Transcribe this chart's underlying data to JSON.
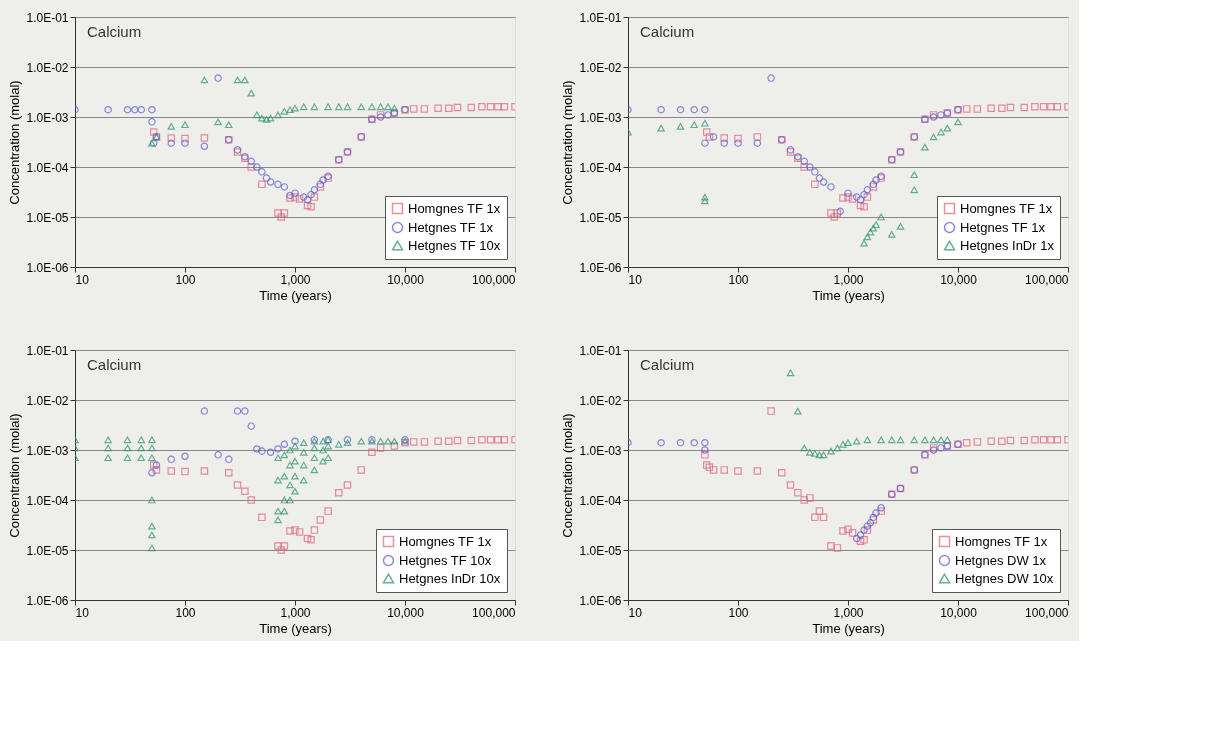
{
  "chart_data": [
    {
      "type": "scatter",
      "title": "Calcium",
      "xlabel": "Time (years)",
      "ylabel": "Concentration (molal)",
      "log": "xy",
      "grid": "y",
      "legend": "bottom right",
      "xlim": [
        10,
        100000
      ],
      "ylim": [
        1e-06,
        0.1
      ],
      "xticks": [
        10,
        100,
        {
          "value": 1000,
          "label": "1,000"
        },
        {
          "value": 10000,
          "label": "10,000"
        },
        {
          "value": 100000,
          "label": "100,000"
        }
      ],
      "yticks": [
        {
          "value": 1e-06,
          "label": "1.0E-06"
        },
        {
          "value": 1e-05,
          "label": "1.0E-05"
        },
        {
          "value": 0.0001,
          "label": "1.0E-04"
        },
        {
          "value": 0.001,
          "label": "1.0E-03"
        },
        {
          "value": 0.01,
          "label": "1.0E-02"
        },
        {
          "value": 0.1,
          "label": "1.0E-01"
        }
      ],
      "series": [
        {
          "name": "Homgnes TF 1x",
          "color": "#e0607a",
          "marker": "square",
          "x": [
            52,
            55,
            75,
            100,
            150,
            250,
            300,
            350,
            400,
            500,
            700,
            750,
            800,
            900,
            1000,
            1100,
            1300,
            1400,
            1500,
            1700,
            2000,
            2500,
            3000,
            4000,
            5000,
            6000,
            8000,
            10000,
            12000,
            15000,
            20000,
            25000,
            30000,
            40000,
            50000,
            60000,
            70000,
            80000,
            100000
          ],
          "values": [
            0.0005,
            0.0004,
            0.00038,
            0.00037,
            0.00038,
            0.00035,
            0.0002,
            0.00015,
            0.0001,
            4.5e-05,
            1.2e-05,
            1e-05,
            1.2e-05,
            2.4e-05,
            2.5e-05,
            2.3e-05,
            1.7e-05,
            1.6e-05,
            2.5e-05,
            4e-05,
            6e-05,
            0.00014,
            0.0002,
            0.0004,
            0.0009,
            0.0011,
            0.0012,
            0.0014,
            0.00145,
            0.00145,
            0.0015,
            0.0015,
            0.00155,
            0.00155,
            0.0016,
            0.0016,
            0.0016,
            0.0016,
            0.0016
          ]
        },
        {
          "name": "Hetgnes TF 1x",
          "color": "#5a5ad0",
          "marker": "circle",
          "x": [
            10,
            20,
            30,
            35,
            40,
            50,
            50,
            52,
            55,
            75,
            100,
            150,
            200,
            250,
            300,
            350,
            400,
            450,
            500,
            550,
            600,
            700,
            800,
            900,
            1000,
            1200,
            1300,
            1400,
            1500,
            1700,
            1800,
            2000,
            2500,
            3000,
            4000,
            5000,
            6000,
            7000,
            8000,
            10000
          ],
          "values": [
            0.0014,
            0.0014,
            0.0014,
            0.0014,
            0.0014,
            0.0014,
            0.0008,
            0.0003,
            0.0004,
            0.0003,
            0.0003,
            0.00026,
            0.006,
            0.00035,
            0.00022,
            0.00016,
            0.00013,
            0.0001,
            8e-05,
            6e-05,
            5e-05,
            4.5e-05,
            4e-05,
            2.7e-05,
            3e-05,
            2.5e-05,
            2.2e-05,
            2.8e-05,
            3.5e-05,
            4.5e-05,
            5.5e-05,
            6.5e-05,
            0.00014,
            0.0002,
            0.0004,
            0.0009,
            0.001,
            0.0011,
            0.0012,
            0.0014
          ]
        },
        {
          "name": "Hetgnes TF 10x",
          "color": "#2a9070",
          "marker": "triangle",
          "x": [
            50,
            55,
            75,
            100,
            150,
            200,
            250,
            300,
            350,
            400,
            450,
            500,
            550,
            600,
            700,
            800,
            900,
            1000,
            1200,
            1500,
            2000,
            2500,
            3000,
            4000,
            5000,
            6000,
            7000,
            8000
          ],
          "values": [
            0.0003,
            0.0004,
            0.00065,
            0.0007,
            0.0055,
            0.0008,
            0.0007,
            0.0055,
            0.0055,
            0.003,
            0.0011,
            0.00095,
            0.0009,
            0.00095,
            0.0011,
            0.0013,
            0.0014,
            0.0015,
            0.0016,
            0.0016,
            0.0016,
            0.0016,
            0.0016,
            0.0016,
            0.0016,
            0.0016,
            0.0016,
            0.0015
          ]
        }
      ]
    },
    {
      "type": "scatter",
      "title": "Calcium",
      "xlabel": "Time (years)",
      "ylabel": "Concentration (molal)",
      "log": "xy",
      "grid": "y",
      "legend": "bottom right",
      "xlim": [
        10,
        100000
      ],
      "ylim": [
        1e-06,
        0.1
      ],
      "xticks": [
        10,
        100,
        {
          "value": 1000,
          "label": "1,000"
        },
        {
          "value": 10000,
          "label": "10,000"
        },
        {
          "value": 100000,
          "label": "100,000"
        }
      ],
      "yticks": [
        {
          "value": 1e-06,
          "label": "1.0E-06"
        },
        {
          "value": 1e-05,
          "label": "1.0E-05"
        },
        {
          "value": 0.0001,
          "label": "1.0E-04"
        },
        {
          "value": 0.001,
          "label": "1.0E-03"
        },
        {
          "value": 0.01,
          "label": "1.0E-02"
        },
        {
          "value": 0.1,
          "label": "1.0E-01"
        }
      ],
      "series": [
        {
          "name": "Homgnes TF 1x",
          "color": "#e0607a",
          "marker": "square",
          "x": [
            52,
            55,
            75,
            100,
            150,
            250,
            300,
            350,
            400,
            500,
            700,
            750,
            800,
            900,
            1000,
            1100,
            1300,
            1400,
            1500,
            1700,
            2000,
            2500,
            3000,
            4000,
            5000,
            6000,
            8000,
            10000,
            12000,
            15000,
            20000,
            25000,
            30000,
            40000,
            50000,
            60000,
            70000,
            80000,
            100000
          ],
          "values": [
            0.0005,
            0.0004,
            0.00038,
            0.00037,
            0.0004,
            0.00035,
            0.0002,
            0.00015,
            0.0001,
            4.5e-05,
            1.2e-05,
            1e-05,
            1.2e-05,
            2.4e-05,
            2.5e-05,
            2.3e-05,
            1.7e-05,
            1.6e-05,
            2.5e-05,
            4e-05,
            6e-05,
            0.00014,
            0.0002,
            0.0004,
            0.0009,
            0.0011,
            0.0012,
            0.0014,
            0.00145,
            0.00145,
            0.0015,
            0.0015,
            0.00155,
            0.00155,
            0.0016,
            0.0016,
            0.0016,
            0.0016,
            0.0016
          ]
        },
        {
          "name": "Hetgnes TF 1x",
          "color": "#5a5ad0",
          "marker": "circle",
          "x": [
            10,
            20,
            30,
            40,
            50,
            50,
            60,
            75,
            100,
            150,
            200,
            250,
            300,
            350,
            400,
            450,
            500,
            550,
            600,
            700,
            850,
            1000,
            1200,
            1300,
            1400,
            1500,
            1700,
            1800,
            2000,
            2500,
            3000,
            4000,
            5000,
            6000,
            7000,
            8000,
            10000
          ],
          "values": [
            0.0014,
            0.0014,
            0.0014,
            0.0014,
            0.0014,
            0.0003,
            0.0004,
            0.0003,
            0.0003,
            0.0003,
            0.006,
            0.00035,
            0.00022,
            0.00016,
            0.00013,
            0.0001,
            8e-05,
            6e-05,
            5e-05,
            4e-05,
            1.3e-05,
            3e-05,
            2.5e-05,
            2.2e-05,
            2.8e-05,
            3.5e-05,
            4.5e-05,
            5.5e-05,
            6.5e-05,
            0.00014,
            0.0002,
            0.0004,
            0.0009,
            0.001,
            0.0011,
            0.0012,
            0.0014
          ]
        },
        {
          "name": "Hetgnes InDr 1x",
          "color": "#2a9070",
          "marker": "triangle",
          "x": [
            10,
            20,
            30,
            40,
            50,
            50,
            50,
            1400,
            1500,
            1600,
            1700,
            1800,
            2000,
            2500,
            3000,
            4000,
            4000,
            5000,
            6000,
            7000,
            8000,
            10000
          ],
          "values": [
            0.0005,
            0.0006,
            0.00065,
            0.0007,
            0.00075,
            2.5e-05,
            2.1e-05,
            3e-06,
            4e-06,
            5e-06,
            6e-06,
            7e-06,
            1e-05,
            4.5e-06,
            6.5e-06,
            7e-05,
            3.5e-05,
            0.00025,
            0.0004,
            0.0005,
            0.0006,
            0.0008
          ]
        }
      ]
    },
    {
      "type": "scatter",
      "title": "Calcium",
      "xlabel": "Time (years)",
      "ylabel": "Concentration (molal)",
      "log": "xy",
      "grid": "y",
      "legend": "bottom right",
      "xlim": [
        10,
        100000
      ],
      "ylim": [
        1e-06,
        0.1
      ],
      "xticks": [
        10,
        100,
        {
          "value": 1000,
          "label": "1,000"
        },
        {
          "value": 10000,
          "label": "10,000"
        },
        {
          "value": 100000,
          "label": "100,000"
        }
      ],
      "yticks": [
        {
          "value": 1e-06,
          "label": "1.0E-06"
        },
        {
          "value": 1e-05,
          "label": "1.0E-05"
        },
        {
          "value": 0.0001,
          "label": "1.0E-04"
        },
        {
          "value": 0.001,
          "label": "1.0E-03"
        },
        {
          "value": 0.01,
          "label": "1.0E-02"
        },
        {
          "value": 0.1,
          "label": "1.0E-01"
        }
      ],
      "series": [
        {
          "name": "Homgnes TF 1x",
          "color": "#e0607a",
          "marker": "square",
          "x": [
            52,
            55,
            75,
            100,
            150,
            250,
            300,
            350,
            400,
            500,
            700,
            750,
            800,
            900,
            1000,
            1100,
            1300,
            1400,
            1500,
            1700,
            2000,
            2500,
            3000,
            4000,
            5000,
            6000,
            8000,
            10000,
            12000,
            15000,
            20000,
            25000,
            30000,
            40000,
            50000,
            60000,
            70000,
            80000,
            100000
          ],
          "values": [
            0.0005,
            0.0004,
            0.00038,
            0.00037,
            0.00038,
            0.00035,
            0.0002,
            0.00015,
            0.0001,
            4.5e-05,
            1.2e-05,
            1e-05,
            1.2e-05,
            2.4e-05,
            2.5e-05,
            2.3e-05,
            1.7e-05,
            1.6e-05,
            2.5e-05,
            4e-05,
            6e-05,
            0.00014,
            0.0002,
            0.0004,
            0.0009,
            0.0011,
            0.0012,
            0.0014,
            0.00145,
            0.00145,
            0.0015,
            0.0015,
            0.00155,
            0.00155,
            0.0016,
            0.0016,
            0.0016,
            0.0016,
            0.0016
          ]
        },
        {
          "name": "Hetgnes TF 10x",
          "color": "#5a5ad0",
          "marker": "circle",
          "x": [
            50,
            55,
            75,
            100,
            150,
            200,
            250,
            300,
            350,
            400,
            450,
            500,
            600,
            700,
            800,
            1000,
            1500,
            2000,
            3000,
            5000,
            10000
          ],
          "values": [
            0.00035,
            0.0005,
            0.00065,
            0.00075,
            0.006,
            0.0008,
            0.00065,
            0.006,
            0.006,
            0.003,
            0.00105,
            0.00095,
            0.0009,
            0.00105,
            0.0013,
            0.0015,
            0.0016,
            0.0016,
            0.0016,
            0.0016,
            0.0016
          ]
        },
        {
          "name": "Hetgnes InDr 10x",
          "color": "#2a9070",
          "marker": "triangle",
          "x": [
            10,
            10,
            10,
            20,
            20,
            20,
            30,
            30,
            30,
            40,
            40,
            40,
            50,
            50,
            50,
            50,
            50,
            50,
            50,
            700,
            700,
            700,
            700,
            800,
            800,
            800,
            800,
            900,
            900,
            900,
            900,
            1000,
            1000,
            1000,
            1000,
            1200,
            1200,
            1200,
            1200,
            1500,
            1500,
            1500,
            1500,
            1800,
            1800,
            1800,
            2000,
            2000,
            2000,
            2500,
            3000,
            4000,
            5000,
            6000,
            7000,
            8000,
            10000
          ],
          "values": [
            0.0007,
            0.0011,
            0.0016,
            0.0007,
            0.0011,
            0.0016,
            0.0007,
            0.0011,
            0.0016,
            0.0007,
            0.0011,
            0.0016,
            0.0007,
            0.0011,
            0.0016,
            0.0001,
            3e-05,
            2e-05,
            1.1e-05,
            4e-05,
            6e-05,
            0.00025,
            0.0007,
            6e-05,
            0.0001,
            0.0003,
            0.0008,
            0.0001,
            0.0002,
            0.0005,
            0.001,
            0.00015,
            0.0003,
            0.0006,
            0.0012,
            0.00025,
            0.0005,
            0.0009,
            0.0014,
            0.0004,
            0.0007,
            0.0011,
            0.0015,
            0.0006,
            0.001,
            0.0015,
            0.0007,
            0.0012,
            0.0016,
            0.0013,
            0.0014,
            0.0015,
            0.0015,
            0.0015,
            0.0015,
            0.0015,
            0.0015
          ]
        }
      ]
    },
    {
      "type": "scatter",
      "title": "Calcium",
      "xlabel": "Time (years)",
      "ylabel": "Concentration (molal)",
      "log": "xy",
      "grid": "y",
      "legend": "bottom right",
      "xlim": [
        10,
        100000
      ],
      "ylim": [
        1e-06,
        0.1
      ],
      "xticks": [
        10,
        100,
        {
          "value": 1000,
          "label": "1,000"
        },
        {
          "value": 10000,
          "label": "10,000"
        },
        {
          "value": 100000,
          "label": "100,000"
        }
      ],
      "yticks": [
        {
          "value": 1e-06,
          "label": "1.0E-06"
        },
        {
          "value": 1e-05,
          "label": "1.0E-05"
        },
        {
          "value": 0.0001,
          "label": "1.0E-04"
        },
        {
          "value": 0.001,
          "label": "1.0E-03"
        },
        {
          "value": 0.01,
          "label": "1.0E-02"
        },
        {
          "value": 0.1,
          "label": "1.0E-01"
        }
      ],
      "series": [
        {
          "name": "Homgnes TF 1x",
          "color": "#e0607a",
          "marker": "square",
          "x": [
            50,
            52,
            55,
            60,
            75,
            100,
            150,
            200,
            250,
            300,
            350,
            400,
            450,
            500,
            550,
            600,
            700,
            800,
            900,
            1000,
            1100,
            1300,
            1400,
            1500,
            1700,
            2000,
            2500,
            3000,
            4000,
            5000,
            6000,
            8000,
            10000,
            12000,
            15000,
            20000,
            25000,
            30000,
            40000,
            50000,
            60000,
            70000,
            80000,
            100000
          ],
          "values": [
            0.0008,
            0.0005,
            0.00045,
            0.0004,
            0.0004,
            0.00038,
            0.00038,
            0.006,
            0.00035,
            0.0002,
            0.00014,
            0.0001,
            0.00011,
            4.5e-05,
            6e-05,
            4.5e-05,
            1.2e-05,
            1.1e-05,
            2.4e-05,
            2.6e-05,
            2.2e-05,
            1.5e-05,
            1.6e-05,
            2.5e-05,
            4e-05,
            6e-05,
            0.00013,
            0.00017,
            0.0004,
            0.0008,
            0.0011,
            0.0012,
            0.0013,
            0.0014,
            0.00145,
            0.0015,
            0.0015,
            0.00155,
            0.00155,
            0.0016,
            0.0016,
            0.0016,
            0.0016,
            0.0016
          ]
        },
        {
          "name": "Hetgnes DW 1x",
          "color": "#5a5ad0",
          "marker": "circle",
          "x": [
            10,
            20,
            30,
            40,
            50,
            50,
            1200,
            1300,
            1400,
            1500,
            1600,
            1700,
            1800,
            2000,
            2500,
            3000,
            4000,
            5000,
            6000,
            7000,
            8000,
            10000
          ],
          "values": [
            0.0014,
            0.0014,
            0.0014,
            0.0014,
            0.0014,
            0.001,
            1.7e-05,
            2e-05,
            2.5e-05,
            3e-05,
            3.5e-05,
            4.5e-05,
            5.5e-05,
            7e-05,
            0.00013,
            0.00017,
            0.0004,
            0.0008,
            0.001,
            0.0011,
            0.0012,
            0.0013
          ]
        },
        {
          "name": "Hetgnes DW 10x",
          "color": "#2a9070",
          "marker": "triangle",
          "x": [
            300,
            350,
            400,
            450,
            500,
            550,
            600,
            700,
            800,
            900,
            1000,
            1200,
            1500,
            2000,
            2500,
            3000,
            4000,
            5000,
            6000,
            7000,
            8000
          ],
          "values": [
            0.035,
            0.006,
            0.0011,
            0.0009,
            0.00085,
            0.0008,
            0.0008,
            0.00095,
            0.0011,
            0.0013,
            0.0014,
            0.0015,
            0.0016,
            0.0016,
            0.0016,
            0.0016,
            0.0016,
            0.0016,
            0.0016,
            0.0016,
            0.0016
          ]
        }
      ]
    }
  ]
}
